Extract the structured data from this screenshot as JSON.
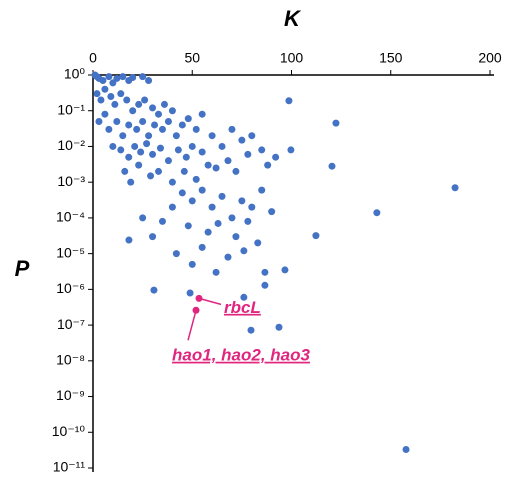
{
  "chart_data": {
    "type": "scatter",
    "x_label": "K",
    "y_label": "P",
    "xlim": [
      0,
      200
    ],
    "xticks": [
      0,
      50,
      100,
      150,
      200
    ],
    "x_axis_position": "top",
    "ylim": [
      1e-11,
      1
    ],
    "ylog": true,
    "yticks": [
      {
        "value": 1,
        "label": "10⁰"
      },
      {
        "value": 0.1,
        "label": "10⁻¹"
      },
      {
        "value": 0.01,
        "label": "10⁻²"
      },
      {
        "value": 0.001,
        "label": "10⁻³"
      },
      {
        "value": 0.0001,
        "label": "10⁻⁴"
      },
      {
        "value": 1e-05,
        "label": "10⁻⁵"
      },
      {
        "value": 1e-06,
        "label": "10⁻⁶"
      },
      {
        "value": 1e-07,
        "label": "10⁻⁷"
      },
      {
        "value": 1e-08,
        "label": "10⁻⁸"
      },
      {
        "value": 1e-09,
        "label": "10⁻⁹"
      },
      {
        "value": 1e-10,
        "label": "10⁻¹⁰"
      },
      {
        "value": 1e-11,
        "label": "10⁻¹¹"
      }
    ],
    "series": [
      {
        "color": "#4472c4",
        "x": [
          1,
          2,
          3,
          5,
          8,
          10,
          12,
          15,
          18,
          20,
          25,
          28,
          2,
          4,
          6,
          9,
          11,
          14,
          17,
          20,
          23,
          26,
          30,
          33,
          36,
          40,
          3,
          6,
          8,
          12,
          15,
          18,
          22,
          25,
          28,
          31,
          35,
          38,
          42,
          45,
          48,
          52,
          55,
          10,
          14,
          18,
          21,
          24,
          27,
          30,
          34,
          38,
          43,
          47,
          50,
          55,
          60,
          65,
          70,
          75,
          80,
          85,
          16,
          19,
          23,
          29,
          33,
          40,
          46,
          52,
          58,
          62,
          68,
          72,
          78,
          88,
          92,
          45,
          50,
          55,
          60,
          65,
          70,
          75,
          80,
          85,
          90,
          40,
          35,
          48,
          58,
          63,
          72,
          78,
          83,
          25,
          30,
          18.1,
          42,
          55,
          68,
          76,
          50,
          62,
          86.6,
          96.7,
          86.6,
          76,
          48.9,
          30.7,
          79.6,
          93.7,
          98.7,
          99.7,
          122.4,
          120.4,
          112.3,
          143,
          182.4,
          157.7
        ],
        "values": [
          1,
          0.9,
          0.8,
          0.7,
          0.9,
          0.6,
          0.8,
          0.9,
          0.7,
          0.85,
          0.9,
          0.7,
          0.3,
          0.2,
          0.4,
          0.25,
          0.15,
          0.3,
          0.2,
          0.1,
          0.15,
          0.2,
          0.12,
          0.08,
          0.15,
          0.1,
          0.05,
          0.08,
          0.03,
          0.05,
          0.02,
          0.04,
          0.03,
          0.05,
          0.02,
          0.04,
          0.03,
          0.05,
          0.02,
          0.04,
          0.06,
          0.03,
          0.08,
          0.01,
          0.008,
          0.005,
          0.01,
          0.007,
          0.012,
          0.006,
          0.009,
          0.004,
          0.008,
          0.005,
          0.01,
          0.007,
          0.02,
          0.01,
          0.03,
          0.015,
          0.02,
          0.008,
          0.002,
          0.001,
          0.003,
          0.0015,
          0.002,
          0.001,
          0.002,
          0.0012,
          0.003,
          0.0025,
          0.004,
          0.002,
          0.006,
          0.003,
          0.005,
          0.0005,
          0.0003,
          0.0006,
          0.0002,
          0.0004,
          0.0001,
          0.0003,
          0.0002,
          0.0006,
          0.00015,
          0.0002,
          8e-05,
          6e-05,
          4e-05,
          7e-05,
          3e-05,
          8e-05,
          2e-05,
          0.0001,
          3e-05,
          2.4e-05,
          1e-05,
          1.5e-05,
          8e-06,
          1.2e-05,
          5e-06,
          3e-06,
          3e-06,
          3.5e-06,
          1.3e-06,
          6e-07,
          7.9e-07,
          9.5e-07,
          7.2e-08,
          8.7e-08,
          0.19,
          0.008,
          0.045,
          0.0028,
          3.2e-05,
          0.00014,
          0.0007,
          3.3e-11
        ]
      },
      {
        "color": "#e0267f",
        "x": [
          53.4,
          51.9
        ],
        "values": [
          5.6e-07,
          2.6e-07
        ]
      }
    ],
    "annotations": [
      "rbcL",
      "hao1, hao2, hao3"
    ]
  }
}
